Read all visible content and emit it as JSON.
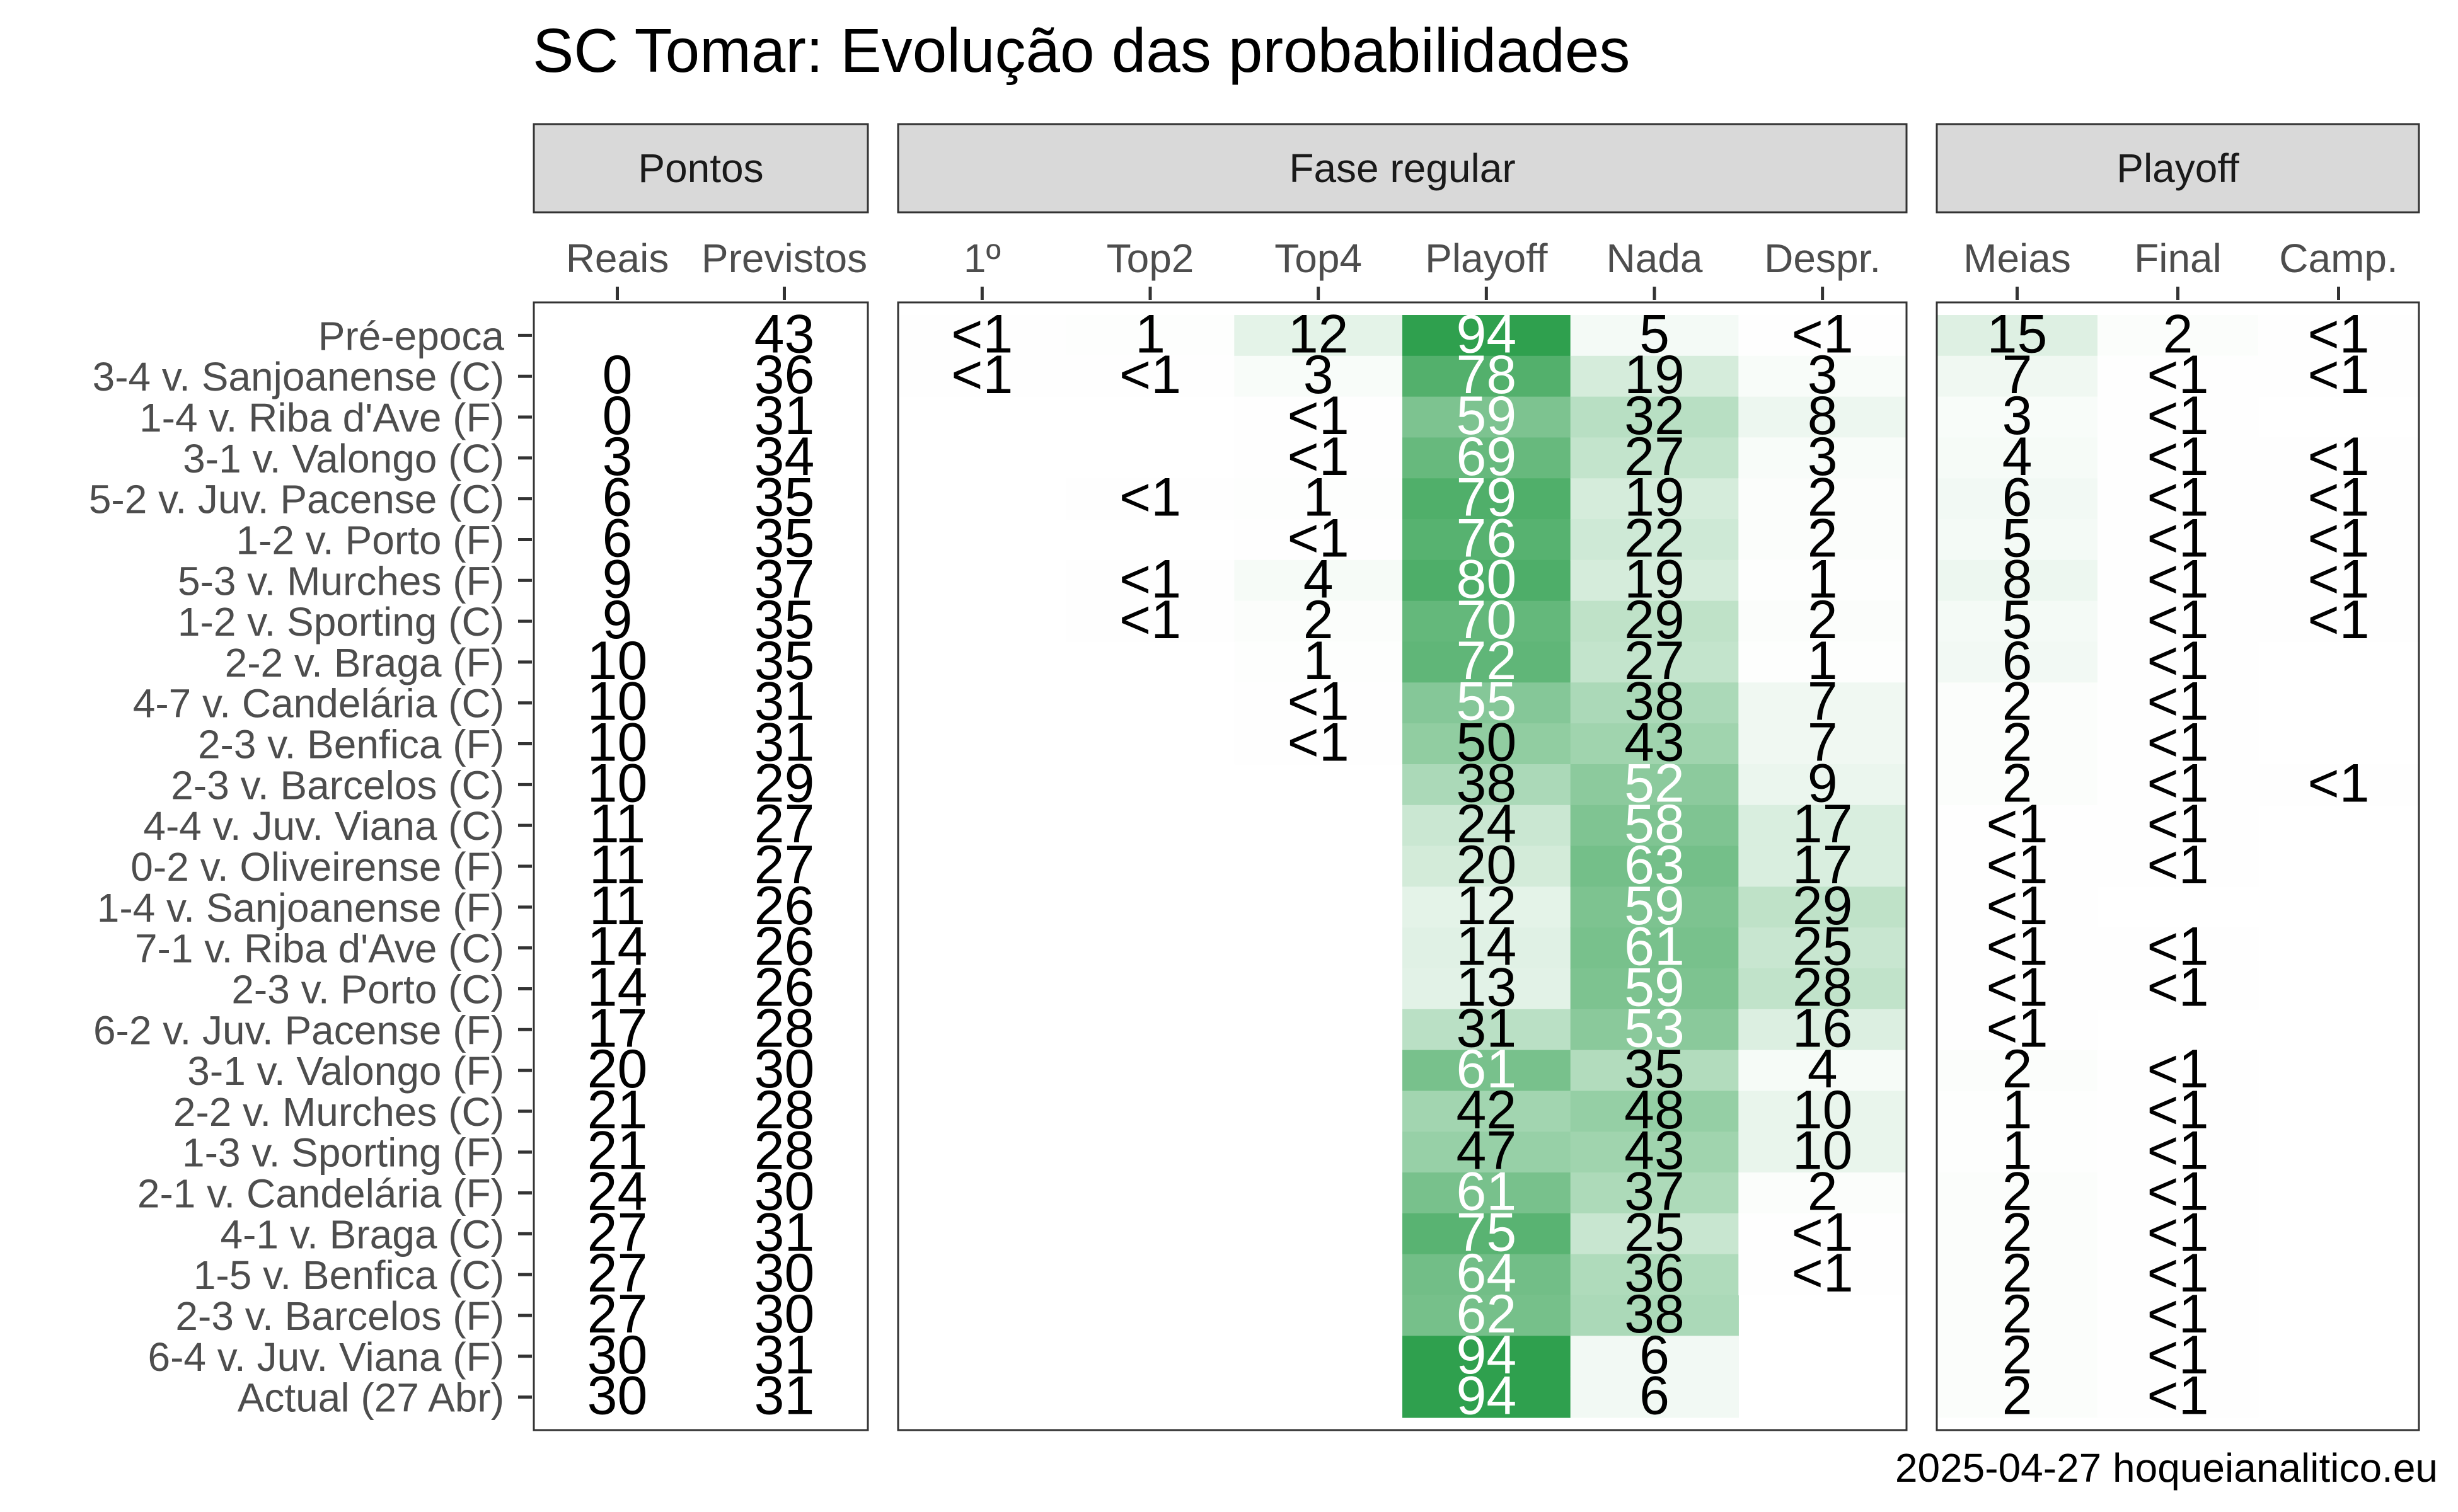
{
  "chart_data": {
    "type": "heatmap",
    "title": "SC Tomar: Evolução das probabilidades",
    "caption": "2025-04-27 hoqueianalitico.eu",
    "rows": [
      "Pré-epoca",
      "3-4 v. Sanjoanense (C)",
      "1-4 v. Riba d'Ave (F)",
      "3-1 v. Valongo (C)",
      "5-2 v. Juv. Pacense (C)",
      "1-2 v. Porto (F)",
      "5-3 v. Murches (F)",
      "1-2 v. Sporting (C)",
      "2-2 v. Braga (F)",
      "4-7 v. Candelária (C)",
      "2-3 v. Benfica (F)",
      "2-3 v. Barcelos (C)",
      "4-4 v. Juv. Viana (C)",
      "0-2 v. Oliveirense (F)",
      "1-4 v. Sanjoanense (F)",
      "7-1 v. Riba d'Ave (C)",
      "2-3 v. Porto (C)",
      "6-2 v. Juv. Pacense (F)",
      "3-1 v. Valongo (F)",
      "2-2 v. Murches (C)",
      "1-3 v. Sporting (F)",
      "2-1 v. Candelária (F)",
      "4-1 v. Braga (C)",
      "1-5 v. Benfica (C)",
      "2-3 v. Barcelos (F)",
      "6-4 v. Juv. Viana (F)",
      "Actual (27 Abr)"
    ],
    "panels": [
      {
        "name": "Pontos",
        "shaded": false,
        "columns": [
          {
            "label": "Reais",
            "values": [
              "",
              "0",
              "0",
              "3",
              "6",
              "6",
              "9",
              "9",
              "10",
              "10",
              "10",
              "10",
              "11",
              "11",
              "11",
              "14",
              "14",
              "17",
              "20",
              "21",
              "21",
              "24",
              "27",
              "27",
              "27",
              "30",
              "30"
            ]
          },
          {
            "label": "Previstos",
            "values": [
              "43",
              "36",
              "31",
              "34",
              "35",
              "35",
              "37",
              "35",
              "35",
              "31",
              "31",
              "29",
              "27",
              "27",
              "26",
              "26",
              "26",
              "28",
              "30",
              "28",
              "28",
              "30",
              "31",
              "30",
              "30",
              "31",
              "31"
            ]
          }
        ]
      },
      {
        "name": "Fase regular",
        "shaded": true,
        "columns": [
          {
            "label": "1º",
            "values": [
              "<1",
              "<1",
              "",
              "",
              "",
              "",
              "",
              "",
              "",
              "",
              "",
              "",
              "",
              "",
              "",
              "",
              "",
              "",
              "",
              "",
              "",
              "",
              "",
              "",
              "",
              "",
              ""
            ]
          },
          {
            "label": "Top2",
            "values": [
              "1",
              "<1",
              "",
              "",
              "<1",
              "",
              "<1",
              "<1",
              "",
              "",
              "",
              "",
              "",
              "",
              "",
              "",
              "",
              "",
              "",
              "",
              "",
              "",
              "",
              "",
              "",
              "",
              ""
            ]
          },
          {
            "label": "Top4",
            "values": [
              "12",
              "3",
              "<1",
              "<1",
              "1",
              "<1",
              "4",
              "2",
              "1",
              "<1",
              "<1",
              "",
              "",
              "",
              "",
              "",
              "",
              "",
              "",
              "",
              "",
              "",
              "",
              "",
              "",
              "",
              ""
            ]
          },
          {
            "label": "Playoff",
            "values": [
              "94",
              "78",
              "59",
              "69",
              "79",
              "76",
              "80",
              "70",
              "72",
              "55",
              "50",
              "38",
              "24",
              "20",
              "12",
              "14",
              "13",
              "31",
              "61",
              "42",
              "47",
              "61",
              "75",
              "64",
              "62",
              "94",
              "94"
            ]
          },
          {
            "label": "Nada",
            "values": [
              "5",
              "19",
              "32",
              "27",
              "19",
              "22",
              "19",
              "29",
              "27",
              "38",
              "43",
              "52",
              "58",
              "63",
              "59",
              "61",
              "59",
              "53",
              "35",
              "48",
              "43",
              "37",
              "25",
              "36",
              "38",
              "6",
              "6"
            ]
          },
          {
            "label": "Despr.",
            "values": [
              "<1",
              "3",
              "8",
              "3",
              "2",
              "2",
              "1",
              "2",
              "1",
              "7",
              "7",
              "9",
              "17",
              "17",
              "29",
              "25",
              "28",
              "16",
              "4",
              "10",
              "10",
              "2",
              "<1",
              "<1",
              "",
              "",
              ""
            ]
          }
        ]
      },
      {
        "name": "Playoff",
        "shaded": true,
        "columns": [
          {
            "label": "Meias",
            "values": [
              "15",
              "7",
              "3",
              "4",
              "6",
              "5",
              "8",
              "5",
              "6",
              "2",
              "2",
              "2",
              "<1",
              "<1",
              "<1",
              "<1",
              "<1",
              "<1",
              "2",
              "1",
              "1",
              "2",
              "2",
              "2",
              "2",
              "2",
              "2"
            ]
          },
          {
            "label": "Final",
            "values": [
              "2",
              "<1",
              "<1",
              "<1",
              "<1",
              "<1",
              "<1",
              "<1",
              "<1",
              "<1",
              "<1",
              "<1",
              "<1",
              "<1",
              "",
              "<1",
              "<1",
              "",
              "<1",
              "<1",
              "<1",
              "<1",
              "<1",
              "<1",
              "<1",
              "<1",
              "<1"
            ]
          },
          {
            "label": "Camp.",
            "values": [
              "<1",
              "<1",
              "",
              "<1",
              "<1",
              "<1",
              "<1",
              "<1",
              "",
              "",
              "",
              "<1",
              "",
              "",
              "",
              "",
              "",
              "",
              "",
              "",
              "",
              "",
              "",
              "",
              "",
              "",
              ""
            ]
          }
        ]
      }
    ],
    "fill_scale": {
      "low": "#ffffff",
      "high": "#229a43",
      "domain": [
        0,
        100
      ]
    },
    "text_colors": {
      "dark": "#000000",
      "light": "#ffffff",
      "light_above": 50
    },
    "grid": false
  }
}
